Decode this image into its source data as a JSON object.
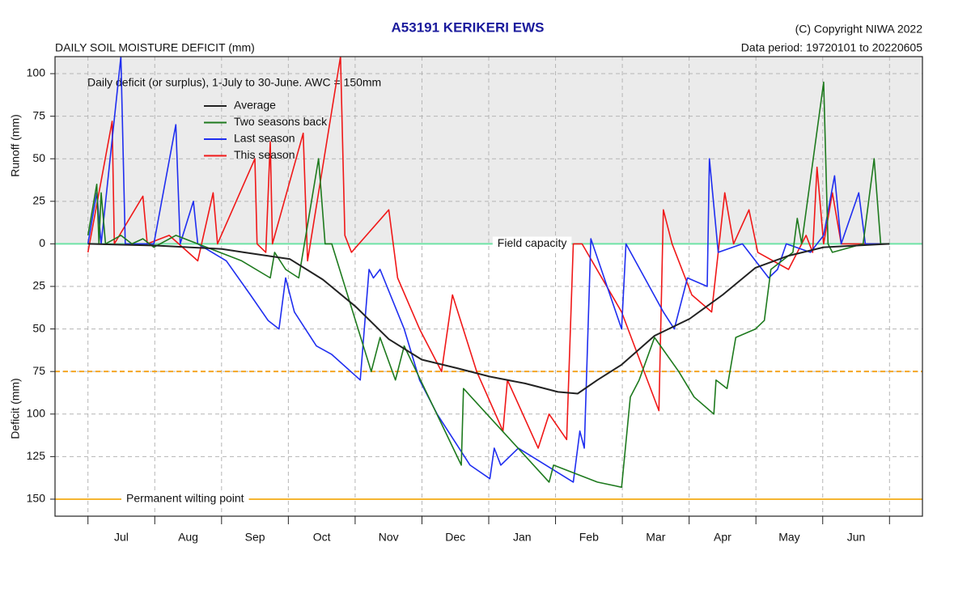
{
  "chart_data": {
    "type": "line",
    "title": "A53191  KERIKERI EWS",
    "subtitle": "DAILY SOIL MOISTURE DEFICIT (mm)",
    "copyright": "(C) Copyright NIWA  2022",
    "data_period": "Data period:  19720101  to  20220605",
    "annotation": "Daily deficit (or surplus), 1-July to 30-June.  AWC = 150mm",
    "y_label_upper": "Runoff (mm)",
    "y_label_lower": "Deficit (mm)",
    "categories": [
      "Jul",
      "Aug",
      "Sep",
      "Oct",
      "Nov",
      "Dec",
      "Jan",
      "Feb",
      "Mar",
      "Apr",
      "May",
      "Jun"
    ],
    "xlim": [
      -15,
      380
    ],
    "ylim": [
      -160,
      110
    ],
    "yticks": [
      {
        "value": 100,
        "label": "100"
      },
      75,
      50,
      25,
      0,
      {
        "value": -25,
        "label": "25"
      },
      {
        "value": -50,
        "label": "50"
      },
      {
        "value": -75,
        "label": "75"
      },
      {
        "value": -100,
        "label": "100"
      },
      {
        "value": -125,
        "label": "125"
      },
      {
        "value": -150,
        "label": "150"
      }
    ],
    "grid": true,
    "legend": "upper left",
    "reference_lines": [
      {
        "value": 0,
        "label": "Field capacity",
        "color": "#6fe3a6",
        "style": "solid"
      },
      {
        "value": -75,
        "color": "#f5a623",
        "style": "dashed"
      },
      {
        "value": -150,
        "label": "Permanent wilting point",
        "color": "#f5b532",
        "style": "solid"
      }
    ],
    "series": [
      {
        "name": "Average",
        "color": "#222222",
        "x": [
          0,
          31,
          61,
          71,
          92,
          107,
          122,
          137,
          152,
          168,
          183,
          199,
          214,
          223,
          232,
          243,
          258,
          274,
          289,
          304,
          319,
          335,
          365
        ],
        "values": [
          0,
          -1,
          -3,
          -5,
          -9,
          -21,
          -37,
          -56,
          -68,
          -73,
          -78,
          -82,
          -87,
          -88,
          -80,
          -71,
          -54,
          -44,
          -30,
          -14,
          -7,
          -2,
          0
        ]
      },
      {
        "name": "Two seasons back",
        "color": "#1e7a1e",
        "x": [
          0,
          4,
          5,
          6,
          8,
          15,
          20,
          25,
          30,
          40,
          50,
          60,
          70,
          83,
          85,
          90,
          96,
          105,
          108,
          111,
          129,
          133,
          140,
          144,
          170,
          171,
          210,
          212,
          232,
          243,
          247,
          251,
          258,
          269,
          276,
          285,
          286,
          291,
          295,
          304,
          308,
          311,
          321,
          323,
          325,
          335,
          337,
          339,
          353,
          358,
          361,
          365
        ],
        "values": [
          5,
          35,
          0,
          30,
          0,
          5,
          0,
          3,
          -2,
          5,
          0,
          -5,
          -10,
          -20,
          -5,
          -15,
          -20,
          50,
          0,
          0,
          -75,
          -55,
          -80,
          -60,
          -130,
          -85,
          -140,
          -130,
          -140,
          -143,
          -90,
          -80,
          -55,
          -75,
          -90,
          -100,
          -80,
          -85,
          -55,
          -50,
          -45,
          -15,
          -5,
          15,
          0,
          95,
          0,
          -5,
          0,
          50,
          0,
          0
        ]
      },
      {
        "name": "Last season",
        "color": "#1f2ef0",
        "x": [
          0,
          4,
          6,
          15,
          17,
          30,
          40,
          42,
          48,
          50,
          63,
          74,
          82,
          87,
          90,
          94,
          104,
          111,
          124,
          128,
          130,
          133,
          144,
          151,
          159,
          174,
          183,
          185,
          188,
          196,
          221,
          224,
          226,
          229,
          243,
          245,
          262,
          267,
          273,
          282,
          283,
          287,
          298,
          310,
          314,
          318,
          329,
          332,
          335,
          340,
          343,
          351,
          354,
          365
        ],
        "values": [
          0,
          30,
          0,
          110,
          0,
          0,
          70,
          0,
          25,
          0,
          -10,
          -30,
          -45,
          -50,
          -20,
          -40,
          -60,
          -65,
          -80,
          -15,
          -20,
          -15,
          -50,
          -80,
          -100,
          -130,
          -138,
          -120,
          -130,
          -120,
          -140,
          -110,
          -120,
          3,
          -50,
          0,
          -40,
          -50,
          -20,
          -25,
          50,
          -5,
          0,
          -20,
          -15,
          0,
          -5,
          0,
          5,
          40,
          0,
          30,
          0,
          0
        ]
      },
      {
        "name": "This season",
        "color": "#f01818",
        "x": [
          0,
          11,
          12,
          25,
          27,
          37,
          50,
          57,
          59,
          76,
          77,
          81,
          83,
          84,
          98,
          100,
          115,
          117,
          120,
          137,
          141,
          151,
          161,
          166,
          177,
          189,
          191,
          205,
          210,
          218,
          221,
          225,
          243,
          260,
          262,
          266,
          275,
          284,
          290,
          294,
          301,
          305,
          319,
          327,
          330,
          332,
          335,
          339,
          343,
          365
        ],
        "values": [
          -5,
          72,
          0,
          28,
          0,
          5,
          -10,
          30,
          0,
          50,
          0,
          -5,
          60,
          0,
          65,
          -10,
          110,
          5,
          -5,
          20,
          -20,
          -50,
          -75,
          -30,
          -75,
          -110,
          -80,
          -120,
          -100,
          -115,
          0,
          0,
          -40,
          -98,
          20,
          0,
          -30,
          -40,
          30,
          0,
          20,
          -5,
          -15,
          5,
          -5,
          45,
          0,
          30,
          0,
          0
        ]
      }
    ]
  }
}
